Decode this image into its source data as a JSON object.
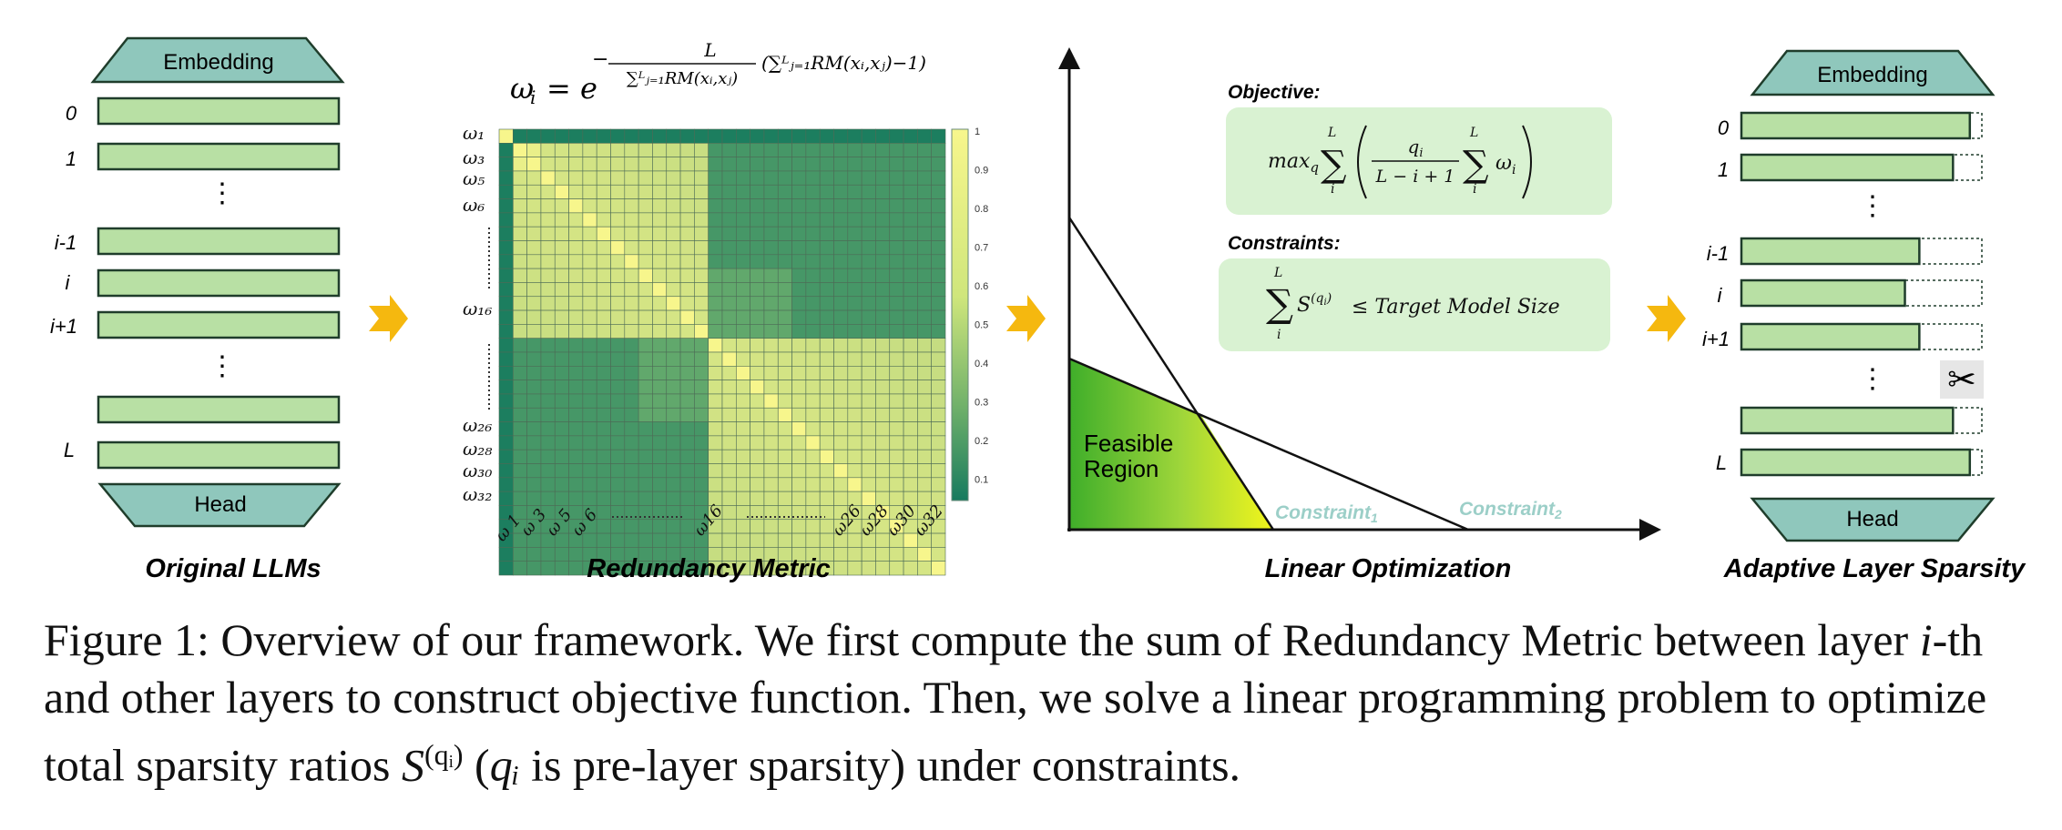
{
  "panels": {
    "original": {
      "title": "Original LLMs",
      "embedding": "Embedding",
      "head": "Head",
      "layer_labels": [
        "0",
        "1",
        "i-1",
        "i",
        "i+1",
        "L"
      ],
      "dots": "⋮"
    },
    "redundancy": {
      "title": "Redundancy Metric",
      "formula_lhs": "ω",
      "formula_sub": "i",
      "formula_eq": "= e",
      "exp_num": "L",
      "exp_den": "∑ᴸⱼ₌₁RM(xᵢ,xⱼ)",
      "exp_tail": "(∑ᴸⱼ₌₁RM(xᵢ,xⱼ)−1)",
      "row_labels": [
        "ω₁",
        "ω₃",
        "ω₅",
        "ω₆",
        "ω₁₆",
        "ω₂₆",
        "ω₂₈",
        "ω₃₀",
        "ω₃₂"
      ],
      "col_labels": [
        "ω 1",
        "ω 3",
        "ω 5",
        "ω 6",
        "ω16",
        "ω26",
        "ω28",
        "ω30",
        "ω32"
      ],
      "colorbar_ticks": [
        "1",
        "0.9",
        "0.8",
        "0.7",
        "0.6",
        "0.5",
        "0.4",
        "0.3",
        "0.2",
        "0.1"
      ]
    },
    "linear": {
      "title": "Linear Optimization",
      "objective_label": "Objective:",
      "objective_formula": "max_q ∑ᵢᴸ ( qᵢ / (L − i + 1) ∑ᵢᴸ ωᵢ )",
      "constraints_label": "Constraints:",
      "constraints_formula": "∑ᵢᴸ S⁽ᑫⁱ⁾ ≤ Target Model Size",
      "feasible": [
        "Feasible",
        "Region"
      ],
      "constraint1": "Constraint",
      "constraint1_sub": "1",
      "constraint2": "Constraint",
      "constraint2_sub": "2"
    },
    "adaptive": {
      "title": "Adaptive Layer Sparsity",
      "embedding": "Embedding",
      "head": "Head",
      "layer_labels": [
        "0",
        "1",
        "i-1",
        "i",
        "i+1",
        "L"
      ],
      "dots": "⋮",
      "scissors": "✂"
    }
  },
  "caption": {
    "prefix": "Figure 1: Overview of our framework. We first compute the sum of Redundancy Metric between layer ",
    "i_italic": "i",
    "middle": "-th and other layers to construct objective function. Then, we solve a linear programming problem to optimize total sparsity ratios ",
    "s_math": "S",
    "s_sup": "(qᵢ)",
    "after_s": " (",
    "q_math": "qᵢ",
    "suffix": " is pre-layer sparsity) under constraints."
  },
  "colors": {
    "layer_fill": "#b8e0a4",
    "layer_stroke": "#1f3d2b",
    "trapezoid": "#8fc7bc",
    "arrow": "#f5b80f",
    "heat_dark": "#167a5e",
    "heat_light": "#f7f68c",
    "box_fill": "#d9f2d2",
    "constraint_text": "#9ccfc8"
  },
  "layer_fill_fraction": {
    "original": [
      1,
      1,
      1,
      1,
      1,
      1,
      1,
      1
    ],
    "adaptive": [
      0.95,
      0.88,
      0.74,
      0.68,
      0.74,
      0.88,
      0.95
    ]
  }
}
